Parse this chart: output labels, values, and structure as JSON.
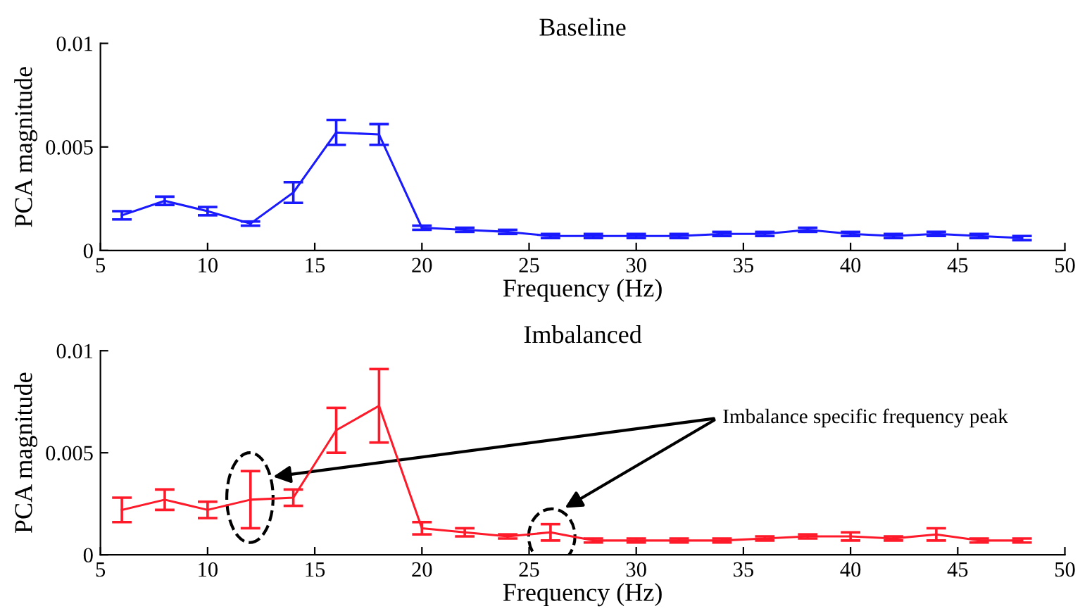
{
  "chart_data": [
    {
      "type": "line",
      "title": "Baseline",
      "xlabel": "Frequency (Hz)",
      "ylabel": "PCA magnitude",
      "x": [
        6,
        8,
        10,
        12,
        14,
        16,
        18,
        20,
        22,
        24,
        26,
        28,
        30,
        32,
        34,
        36,
        38,
        40,
        42,
        44,
        46,
        48
      ],
      "series": [
        {
          "color": "#1a1aff",
          "values": [
            0.0017,
            0.0024,
            0.0019,
            0.0013,
            0.0028,
            0.0057,
            0.0056,
            0.0011,
            0.001,
            0.0009,
            0.0007,
            0.0007,
            0.0007,
            0.0007,
            0.0008,
            0.0008,
            0.001,
            0.0008,
            0.0007,
            0.0008,
            0.0007,
            0.0006
          ],
          "errors": [
            0.0002,
            0.0002,
            0.0002,
            0.0001,
            0.0005,
            0.0006,
            0.0005,
            0.0001,
            0.0001,
            0.0001,
            0.0001,
            0.0001,
            0.0001,
            0.0001,
            0.0001,
            0.0001,
            0.0001,
            0.0001,
            0.0001,
            0.0001,
            0.0001,
            0.0001
          ]
        }
      ],
      "xlim": [
        5,
        50
      ],
      "xticks": [
        5,
        10,
        15,
        20,
        25,
        30,
        35,
        40,
        45,
        50
      ],
      "ylim": [
        0,
        0.01
      ],
      "yticks": [
        0,
        0.005,
        0.01
      ],
      "grid": false,
      "legend": false,
      "marker": "none",
      "line_style": "solid"
    },
    {
      "type": "line",
      "title": "Imbalanced",
      "xlabel": "Frequency (Hz)",
      "ylabel": "PCA magnitude",
      "x": [
        6,
        8,
        10,
        12,
        14,
        16,
        18,
        20,
        22,
        24,
        26,
        28,
        30,
        32,
        34,
        36,
        38,
        40,
        42,
        44,
        46,
        48
      ],
      "series": [
        {
          "color": "#ff1a2a",
          "values": [
            0.0022,
            0.0027,
            0.0022,
            0.0027,
            0.0028,
            0.0061,
            0.0073,
            0.0013,
            0.0011,
            0.0009,
            0.0011,
            0.0007,
            0.0007,
            0.0007,
            0.0007,
            0.0008,
            0.0009,
            0.0009,
            0.0008,
            0.001,
            0.0007,
            0.0007
          ],
          "errors": [
            0.0006,
            0.0005,
            0.0004,
            0.0014,
            0.0004,
            0.0011,
            0.0018,
            0.0003,
            0.0002,
            0.0001,
            0.0004,
            0.0001,
            0.0001,
            0.0001,
            0.0001,
            0.0001,
            0.0001,
            0.0002,
            0.0001,
            0.0003,
            0.0001,
            0.0001
          ]
        }
      ],
      "xlim": [
        5,
        50
      ],
      "xticks": [
        5,
        10,
        15,
        20,
        25,
        30,
        35,
        40,
        45,
        50
      ],
      "ylim": [
        0,
        0.01
      ],
      "yticks": [
        0,
        0.005,
        0.01
      ],
      "grid": false,
      "legend": false,
      "marker": "none",
      "line_style": "solid",
      "annotations": [
        "Imbalance specific frequency peak"
      ]
    }
  ]
}
